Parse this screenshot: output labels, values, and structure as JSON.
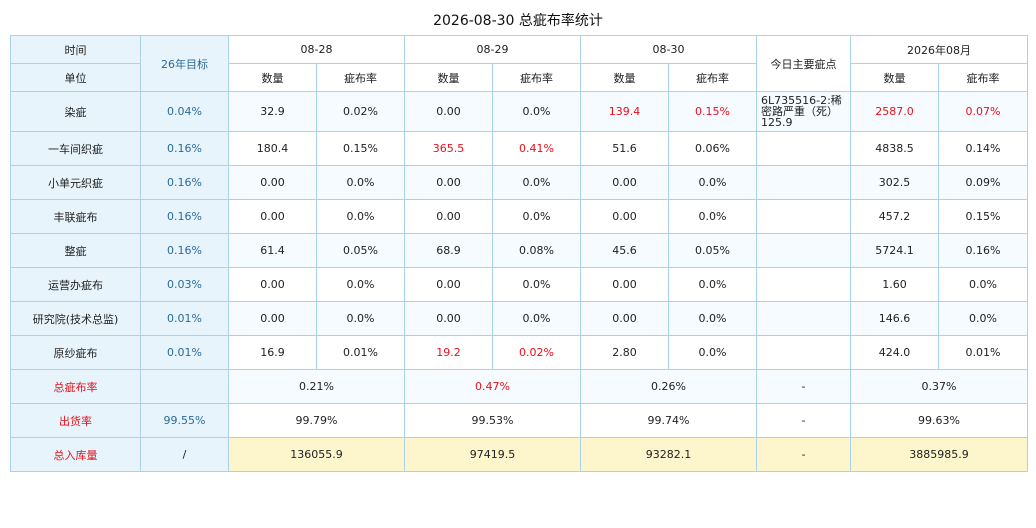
{
  "title": "2026-08-30 总疵布率统计",
  "header": {
    "time_label": "时间",
    "unit_label": "单位",
    "target_label": "26年目标",
    "dates": [
      "08-28",
      "08-29",
      "08-30"
    ],
    "main_defect_label": "今日主要疵点",
    "month_label": "2026年08月",
    "qty_label": "数量",
    "rate_label": "疵布率"
  },
  "rows": [
    {
      "name": "染疵",
      "target": "0.04%",
      "d1q": "32.9",
      "d1r": "0.02%",
      "d2q": "0.00",
      "d2r": "0.0%",
      "d3q": "139.4",
      "d3r": "0.15%",
      "note": "6L735516-2:稀密路严重（死）125.9",
      "mq": "2587.0",
      "mr": "0.07%"
    },
    {
      "name": "一车间织疵",
      "target": "0.16%",
      "d1q": "180.4",
      "d1r": "0.15%",
      "d2q": "365.5",
      "d2r": "0.41%",
      "d3q": "51.6",
      "d3r": "0.06%",
      "note": "",
      "mq": "4838.5",
      "mr": "0.14%"
    },
    {
      "name": "小单元织疵",
      "target": "0.16%",
      "d1q": "0.00",
      "d1r": "0.0%",
      "d2q": "0.00",
      "d2r": "0.0%",
      "d3q": "0.00",
      "d3r": "0.0%",
      "note": "",
      "mq": "302.5",
      "mr": "0.09%"
    },
    {
      "name": "丰联疵布",
      "target": "0.16%",
      "d1q": "0.00",
      "d1r": "0.0%",
      "d2q": "0.00",
      "d2r": "0.0%",
      "d3q": "0.00",
      "d3r": "0.0%",
      "note": "",
      "mq": "457.2",
      "mr": "0.15%"
    },
    {
      "name": "整疵",
      "target": "0.16%",
      "d1q": "61.4",
      "d1r": "0.05%",
      "d2q": "68.9",
      "d2r": "0.08%",
      "d3q": "45.6",
      "d3r": "0.05%",
      "note": "",
      "mq": "5724.1",
      "mr": "0.16%"
    },
    {
      "name": "运营办疵布",
      "target": "0.03%",
      "d1q": "0.00",
      "d1r": "0.0%",
      "d2q": "0.00",
      "d2r": "0.0%",
      "d3q": "0.00",
      "d3r": "0.0%",
      "note": "",
      "mq": "1.60",
      "mr": "0.0%"
    },
    {
      "name": "研究院(技术总监)",
      "target": "0.01%",
      "d1q": "0.00",
      "d1r": "0.0%",
      "d2q": "0.00",
      "d2r": "0.0%",
      "d3q": "0.00",
      "d3r": "0.0%",
      "note": "",
      "mq": "146.6",
      "mr": "0.0%"
    },
    {
      "name": "原纱疵布",
      "target": "0.01%",
      "d1q": "16.9",
      "d1r": "0.01%",
      "d2q": "19.2",
      "d2r": "0.02%",
      "d3q": "2.80",
      "d3r": "0.0%",
      "note": "",
      "mq": "424.0",
      "mr": "0.01%"
    }
  ],
  "summary": {
    "total_rate": {
      "label": "总疵布率",
      "target": "",
      "d1": "0.21%",
      "d2": "0.47%",
      "d3": "0.26%",
      "note": "-",
      "month": "0.37%"
    },
    "ship_rate": {
      "label": "出货率",
      "target": "99.55%",
      "d1": "99.79%",
      "d2": "99.53%",
      "d3": "99.74%",
      "note": "-",
      "month": "99.63%"
    },
    "inbound": {
      "label": "总入库量",
      "target": "/",
      "d1": "136055.9",
      "d2": "97419.5",
      "d3": "93282.1",
      "note": "-",
      "month": "3885985.9"
    }
  },
  "colors": {
    "highlight_red": "#e8101a",
    "border": "#a9d3ea",
    "header_bg": "#e8f4fc",
    "total_bg": "#fdf6cc"
  }
}
